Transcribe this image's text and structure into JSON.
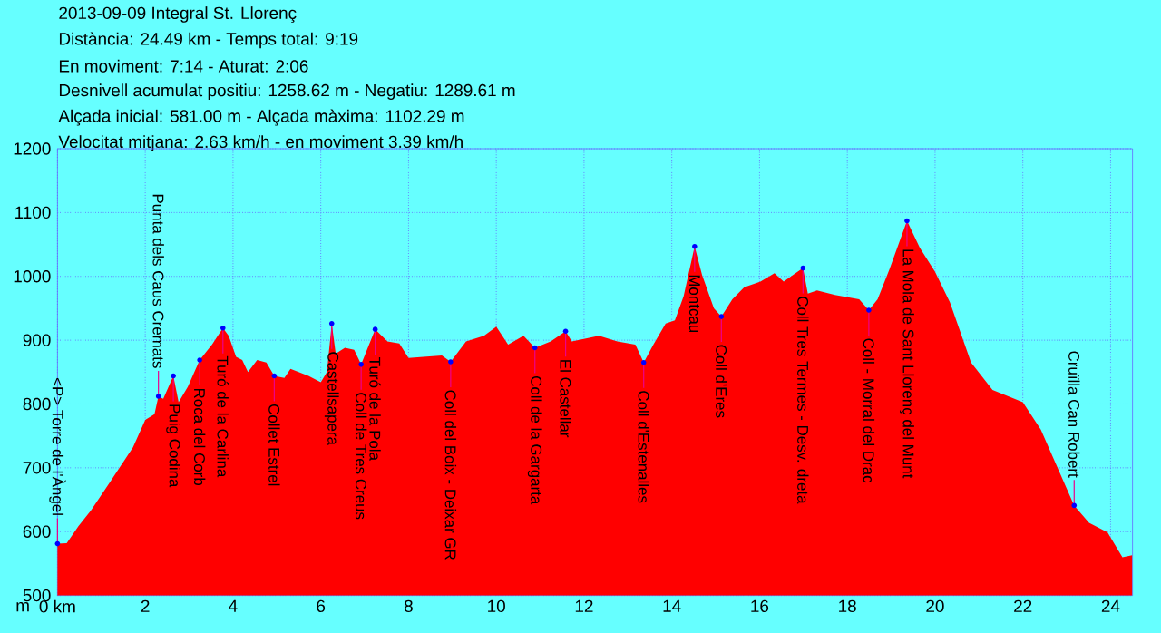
{
  "chart_data": {
    "type": "area",
    "title": "2013-09-09 Integral St. Llorenç",
    "annotations": [
      "Distància: 24.49 km - Temps total: 9:19",
      "En moviment: 7:14 - Aturat: 2:06",
      "Desnivell acumulat positiu: 1258.62 m - Negatiu: 1289.61 m",
      "Alçada inicial: 581.00 m - Alçada màxima: 1102.29 m",
      "Velocitat mitjana: 2.63 km/h - en moviment 3.39 km/h",
      {
        "text": "<P> Torre de l'Àngel",
        "x": 0,
        "y": 581
      },
      {
        "text": "Punta dels Caus Cremats",
        "x": 2.3,
        "y": 812
      },
      {
        "text": "Puig Codina",
        "x": 2.64,
        "y": 844
      },
      {
        "text": "Roca del Corb",
        "x": 3.24,
        "y": 869
      },
      {
        "text": "Turó de la Carlina",
        "x": 3.77,
        "y": 919
      },
      {
        "text": "Collet Estrel",
        "x": 4.94,
        "y": 844
      },
      {
        "text": "Castellsapera",
        "x": 6.25,
        "y": 926
      },
      {
        "text": "Coll de Tres Creus",
        "x": 6.92,
        "y": 862
      },
      {
        "text": "Turó de la Pola",
        "x": 7.24,
        "y": 917
      },
      {
        "text": "Coll del Boix - Deixar GR",
        "x": 8.96,
        "y": 866
      },
      {
        "text": "Coll de la Gargarta",
        "x": 10.88,
        "y": 888
      },
      {
        "text": "El Castellar",
        "x": 11.58,
        "y": 914
      },
      {
        "text": "Coll d'Estenalles",
        "x": 13.36,
        "y": 865
      },
      {
        "text": "Montcau",
        "x": 14.52,
        "y": 1047
      },
      {
        "text": "Coll d'Eres",
        "x": 15.13,
        "y": 937
      },
      {
        "text": "Coll Tres Termes - Desv. dreta",
        "x": 16.99,
        "y": 1013
      },
      {
        "text": "Coll - Morral del Drac",
        "x": 18.49,
        "y": 947
      },
      {
        "text": "La Mola de Sant Llorenç del Munt",
        "x": 19.36,
        "y": 1087
      },
      {
        "text": "Cruïlla Can Robert",
        "x": 23.17,
        "y": 641
      }
    ],
    "ylabel": "m",
    "x": [
      0,
      0.21,
      0.48,
      0.76,
      1.17,
      1.45,
      1.72,
      2.0,
      2.21,
      2.3,
      2.41,
      2.64,
      2.76,
      2.97,
      3.24,
      3.52,
      3.77,
      3.9,
      4.07,
      4.21,
      4.34,
      4.55,
      4.76,
      4.94,
      5.17,
      5.31,
      5.72,
      6.0,
      6.14,
      6.25,
      6.34,
      6.55,
      6.76,
      6.92,
      7.1,
      7.24,
      7.52,
      7.79,
      8.0,
      8.34,
      8.76,
      8.96,
      9.31,
      9.72,
      10.0,
      10.27,
      10.62,
      10.88,
      11.24,
      11.58,
      11.72,
      12.34,
      12.76,
      13.17,
      13.36,
      13.58,
      13.86,
      14.07,
      14.27,
      14.52,
      14.69,
      14.96,
      15.13,
      15.38,
      15.65,
      16.02,
      16.34,
      16.55,
      16.76,
      16.99,
      17.1,
      17.31,
      17.72,
      18.27,
      18.49,
      18.69,
      18.96,
      19.36,
      19.65,
      20.0,
      20.34,
      20.82,
      21.31,
      22.0,
      22.41,
      22.83,
      23.17,
      23.51,
      23.93,
      24.27,
      24.49
    ],
    "values": [
      581,
      582,
      609,
      633,
      675,
      704,
      732,
      775,
      784,
      812,
      808,
      844,
      803,
      827,
      869,
      893,
      919,
      907,
      874,
      869,
      850,
      869,
      865,
      844,
      841,
      855,
      844,
      834,
      850,
      926,
      879,
      888,
      885,
      862,
      893,
      917,
      898,
      895,
      872,
      874,
      876,
      866,
      898,
      907,
      921,
      893,
      907,
      888,
      898,
      914,
      898,
      907,
      898,
      893,
      865,
      893,
      926,
      931,
      969,
      1047,
      1002,
      950,
      937,
      964,
      983,
      992,
      1005,
      992,
      1002,
      1013,
      973,
      978,
      971,
      964,
      947,
      964,
      1011,
      1087,
      1045,
      1007,
      959,
      865,
      822,
      803,
      760,
      694,
      641,
      614,
      599,
      560,
      563
    ],
    "color": "#ff0000",
    "xlim": [
      0,
      24.5
    ],
    "xticks": [
      {
        "value": 0,
        "label": "0 km"
      },
      2,
      4,
      6,
      8,
      10,
      12,
      14,
      16,
      18,
      20,
      22,
      24
    ],
    "ylim": [
      500,
      1200
    ],
    "yticks": [
      500,
      600,
      700,
      800,
      900,
      1000,
      1100,
      1200
    ],
    "grid": true
  }
}
